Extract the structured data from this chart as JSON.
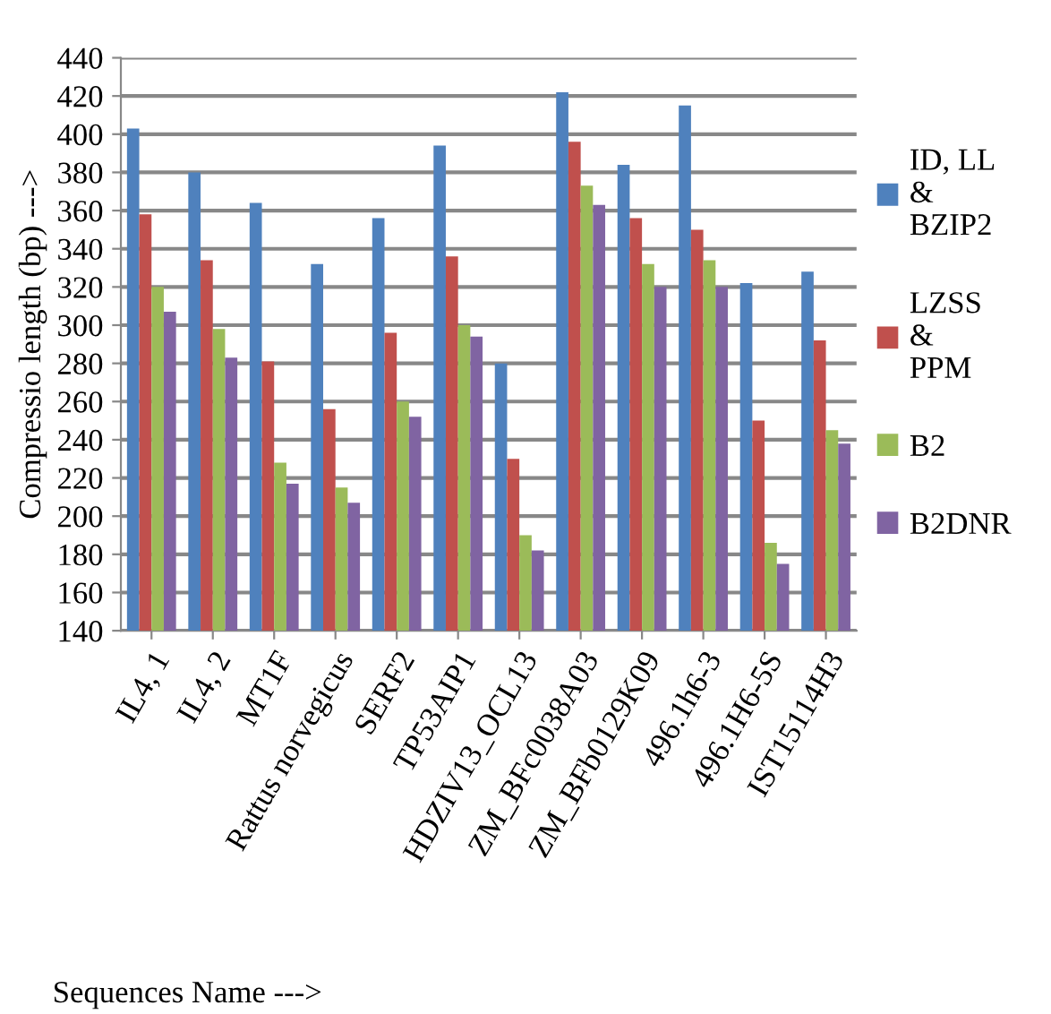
{
  "chart_data": {
    "type": "bar",
    "xlabel": "Sequences Name --->",
    "ylabel": "Compressio length (bp) --->",
    "categories": [
      "IL4, 1",
      "IL4, 2",
      "MT1F",
      "Rattus norvegicus",
      "SERF2",
      "TP53AIP1",
      "HDZIV13_OCL13",
      "ZM_BFc0038A03",
      "ZM_BFb0129K09",
      "496.1h6-3",
      "496.1H6-5S",
      "IST15114H3"
    ],
    "series": [
      {
        "name": "ID, LL & BZIP2",
        "color": "#4f81bd",
        "values": [
          403,
          380,
          364,
          332,
          356,
          394,
          280,
          422,
          384,
          415,
          322,
          328
        ]
      },
      {
        "name": "LZSS & PPM",
        "color": "#c0504d",
        "values": [
          358,
          334,
          281,
          256,
          296,
          336,
          230,
          396,
          356,
          350,
          250,
          292
        ]
      },
      {
        "name": "B2",
        "color": "#9bbb59",
        "values": [
          320,
          298,
          228,
          215,
          260,
          300,
          190,
          373,
          332,
          334,
          186,
          245
        ]
      },
      {
        "name": "B2DNR",
        "color": "#8064a2",
        "values": [
          307,
          283,
          217,
          207,
          252,
          294,
          182,
          363,
          320,
          320,
          175,
          238
        ]
      }
    ],
    "ylim": [
      140,
      440
    ],
    "yticks": [
      140,
      160,
      180,
      200,
      220,
      240,
      260,
      280,
      300,
      320,
      340,
      360,
      380,
      400,
      420,
      440
    ],
    "grid": "y",
    "legend": "right"
  }
}
